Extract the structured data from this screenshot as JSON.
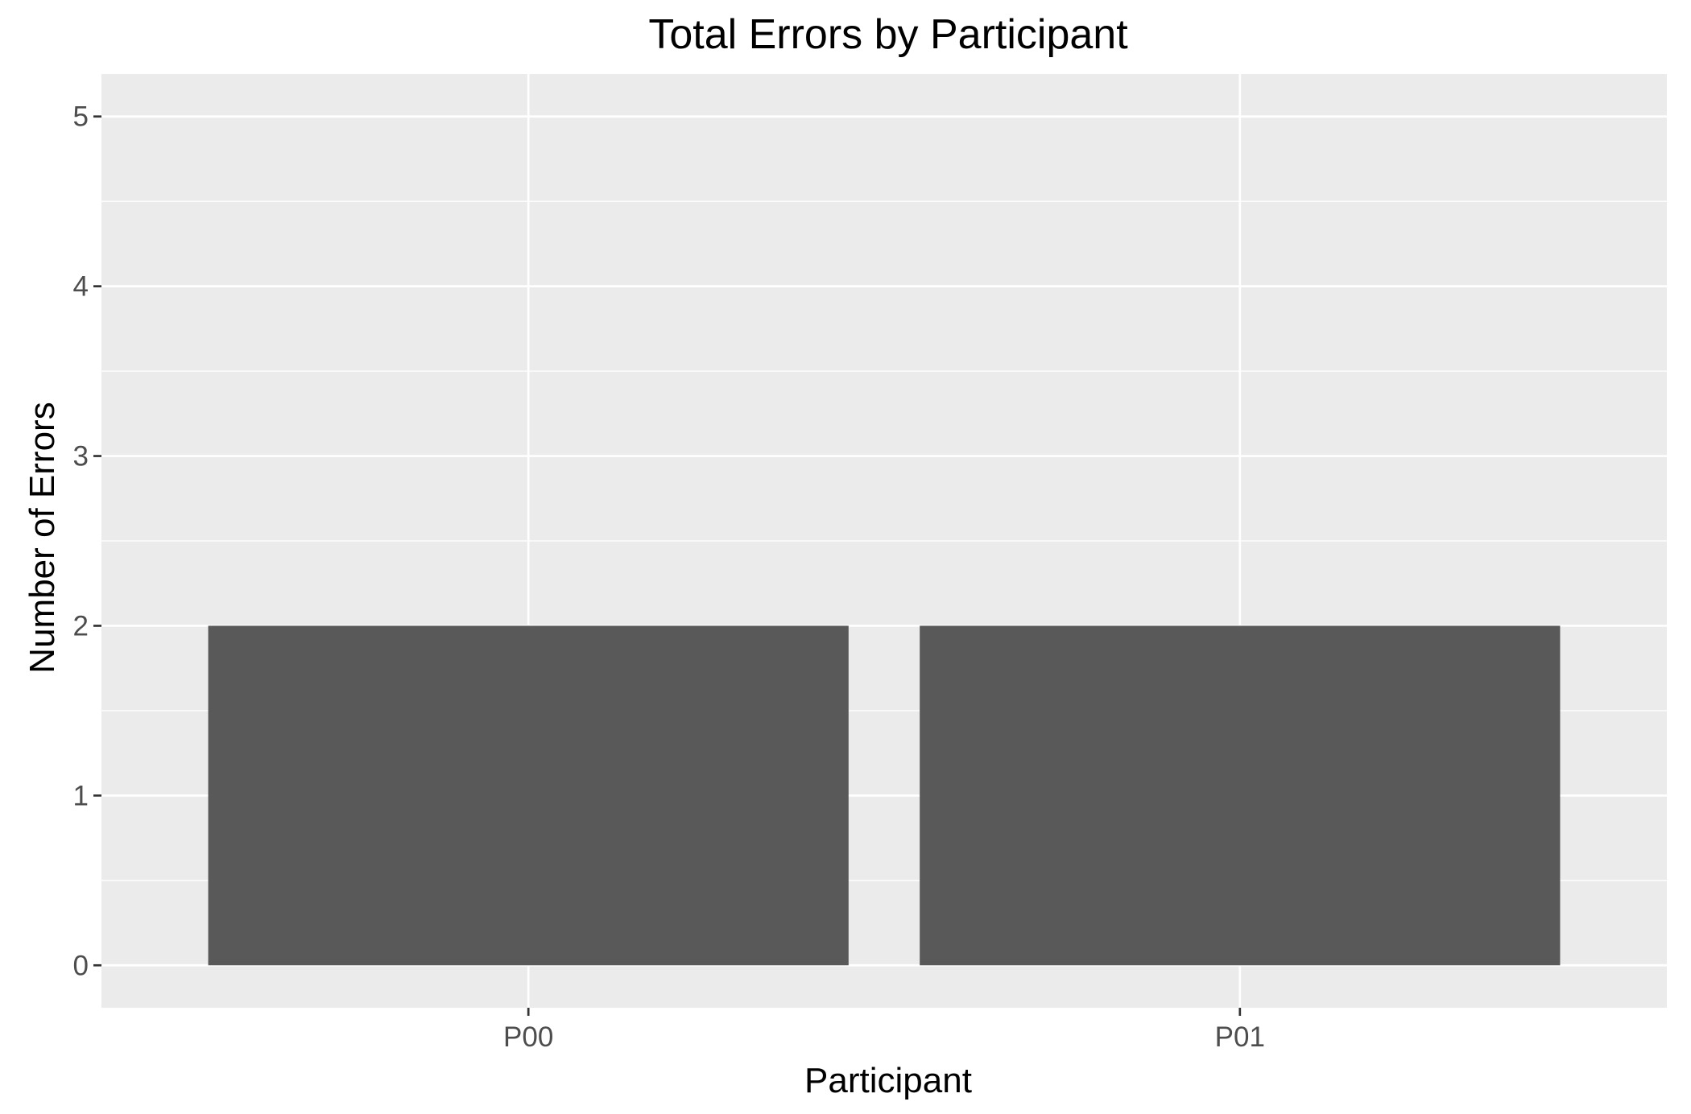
{
  "chart_data": {
    "type": "bar",
    "title": "Total Errors by Participant",
    "xlabel": "Participant",
    "ylabel": "Number of Errors",
    "categories": [
      "P00",
      "P01"
    ],
    "values": [
      2,
      2
    ],
    "ylim": [
      -0.25,
      5.25
    ],
    "yticks": [
      0,
      1,
      2,
      3,
      4,
      5
    ],
    "ytick_labels": [
      "0",
      "1",
      "2",
      "3",
      "4",
      "5"
    ],
    "grid": true,
    "legend": "none",
    "colors": {
      "bar": "#595959",
      "panel_background": "#ebebeb",
      "grid": "#ffffff",
      "tick_mark": "#333333"
    }
  }
}
